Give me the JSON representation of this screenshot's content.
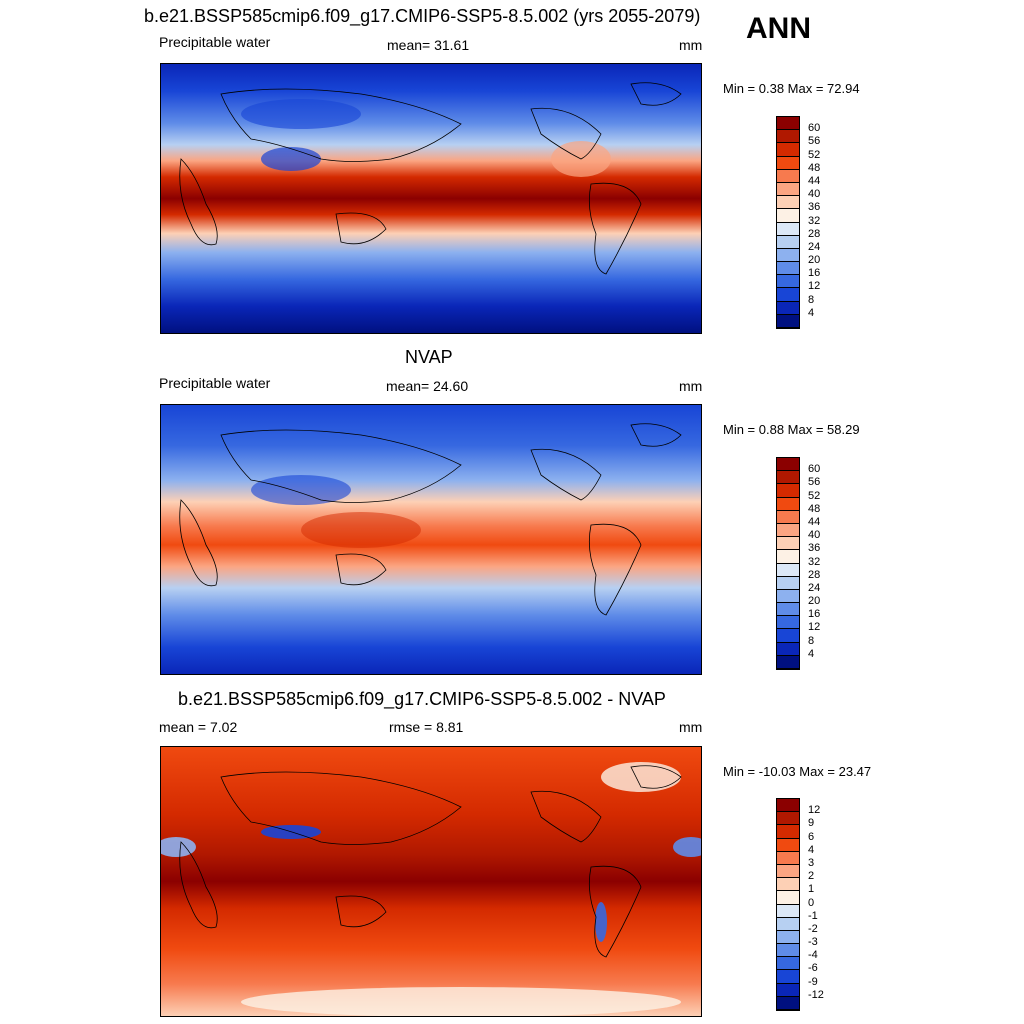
{
  "season": "ANN",
  "panels": [
    {
      "title": "b.e21.BSSP585cmip6.f09_g17.CMIP6-SSP5-8.5.002 (yrs 2055-2079)",
      "left_text": "Precipitable water",
      "center_text": "mean=  31.61",
      "units": "mm",
      "minmax": "Min =   0.38 Max =  72.94",
      "colorbar": {
        "labels": [
          "60",
          "56",
          "52",
          "48",
          "44",
          "40",
          "36",
          "32",
          "28",
          "24",
          "20",
          "16",
          "12",
          "8",
          "4"
        ],
        "colors": [
          "#8b0000",
          "#b01800",
          "#d42a00",
          "#f04a10",
          "#f77a4e",
          "#fba582",
          "#fdd0b5",
          "#fdf1e5",
          "#dce8f7",
          "#b7d0f2",
          "#8db1ef",
          "#5f8ce8",
          "#3668e0",
          "#1845d6",
          "#0a26b8",
          "#001080"
        ]
      }
    },
    {
      "title": "NVAP",
      "left_text": "Precipitable water",
      "center_text": "mean=  24.60",
      "units": "mm",
      "minmax": "Min =   0.88 Max =  58.29",
      "colorbar": {
        "labels": [
          "60",
          "56",
          "52",
          "48",
          "44",
          "40",
          "36",
          "32",
          "28",
          "24",
          "20",
          "16",
          "12",
          "8",
          "4"
        ],
        "colors": [
          "#8b0000",
          "#b01800",
          "#d42a00",
          "#f04a10",
          "#f77a4e",
          "#fba582",
          "#fdd0b5",
          "#fdf1e5",
          "#dce8f7",
          "#b7d0f2",
          "#8db1ef",
          "#5f8ce8",
          "#3668e0",
          "#1845d6",
          "#0a26b8",
          "#001080"
        ]
      }
    },
    {
      "title": "b.e21.BSSP585cmip6.f09_g17.CMIP6-SSP5-8.5.002 - NVAP",
      "left_text": "mean =   7.02",
      "center_text": "rmse =   8.81",
      "units": "mm",
      "minmax": "Min = -10.03 Max =  23.47",
      "colorbar": {
        "labels": [
          "12",
          "9",
          "6",
          "4",
          "3",
          "2",
          "1",
          "0",
          "-1",
          "-2",
          "-3",
          "-4",
          "-6",
          "-9",
          "-12"
        ],
        "colors": [
          "#8b0000",
          "#b01800",
          "#d42a00",
          "#f04a10",
          "#f77a4e",
          "#fba582",
          "#fdd0b5",
          "#fdf1e5",
          "#dce8f7",
          "#b7d0f2",
          "#8db1ef",
          "#5f8ce8",
          "#3668e0",
          "#1845d6",
          "#0a26b8",
          "#001080"
        ]
      }
    }
  ]
}
